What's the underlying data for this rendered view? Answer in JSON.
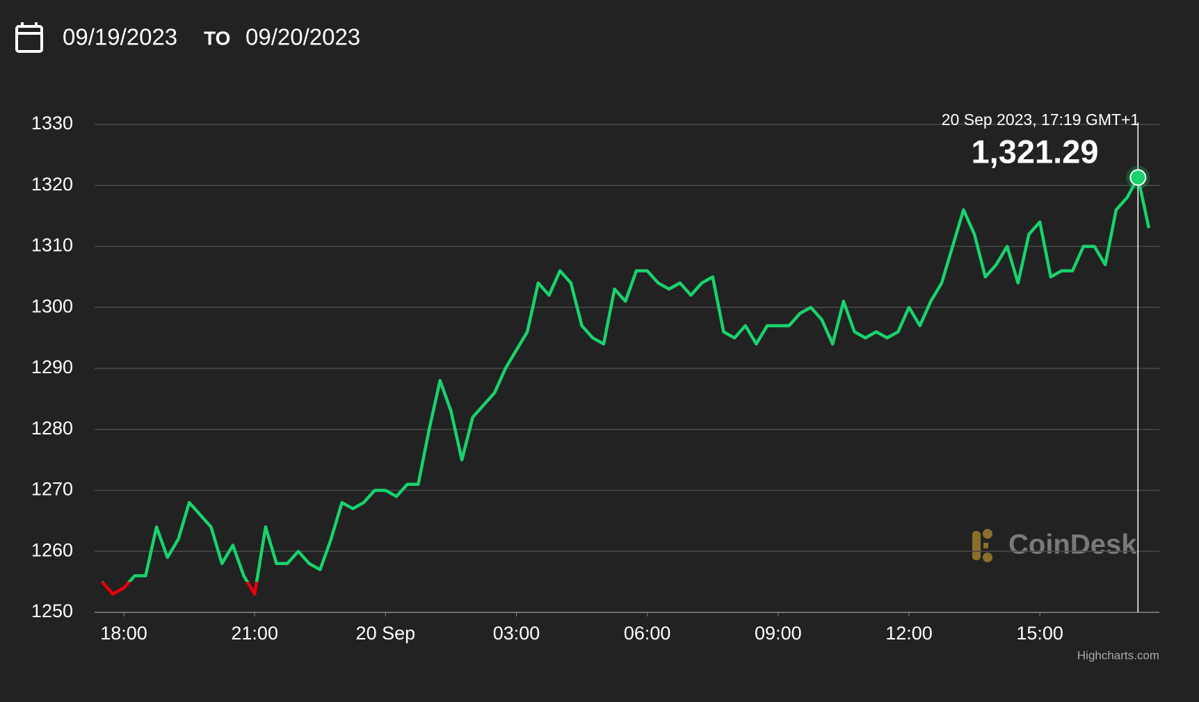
{
  "header": {
    "from": "09/19/2023",
    "to_label": "TO",
    "to": "09/20/2023"
  },
  "chart_data": {
    "type": "line",
    "x": [
      17.5,
      17.75,
      18,
      18.25,
      18.5,
      18.75,
      19,
      19.25,
      19.5,
      19.75,
      20,
      20.25,
      20.5,
      20.75,
      21,
      21.25,
      21.5,
      21.75,
      22,
      22.25,
      22.5,
      22.75,
      23,
      23.25,
      23.5,
      23.75,
      24,
      24.25,
      24.5,
      24.75,
      25,
      25.25,
      25.5,
      25.75,
      26,
      26.25,
      26.5,
      26.75,
      27,
      27.25,
      27.5,
      27.75,
      28,
      28.25,
      28.5,
      28.75,
      29,
      29.25,
      29.5,
      29.75,
      30,
      30.25,
      30.5,
      30.75,
      31,
      31.25,
      31.5,
      31.75,
      32,
      32.25,
      32.5,
      32.75,
      33,
      33.25,
      33.5,
      33.75,
      34,
      34.25,
      34.5,
      34.75,
      35,
      35.25,
      35.5,
      35.75,
      36,
      36.25,
      36.5,
      36.75,
      37,
      37.25,
      37.5,
      37.75,
      38,
      38.25,
      38.5,
      38.75,
      39,
      39.25,
      39.5,
      39.75,
      40,
      40.25,
      40.5,
      40.75,
      41,
      41.25,
      41.5
    ],
    "series": [
      {
        "color": "#18d26e",
        "negative_color": "#e8000b",
        "threshold": 1255,
        "values": [
          1255,
          1253,
          1254,
          1256,
          1256,
          1264,
          1259,
          1262,
          1268,
          1266,
          1264,
          1258,
          1261,
          1256,
          1253,
          1264,
          1258,
          1258,
          1260,
          1258,
          1257,
          1262,
          1268,
          1267,
          1268,
          1270,
          1270,
          1269,
          1271,
          1271,
          1280,
          1288,
          1283,
          1275,
          1282,
          1284,
          1286,
          1290,
          1293,
          1296,
          1304,
          1302,
          1306,
          1304,
          1297,
          1295,
          1294,
          1303,
          1301,
          1306,
          1306,
          1304,
          1303,
          1304,
          1302,
          1304,
          1305,
          1296,
          1295,
          1297,
          1294,
          1297,
          1297,
          1297,
          1299,
          1300,
          1298,
          1294,
          1301,
          1296,
          1295,
          1296,
          1295,
          1296,
          1300,
          1297,
          1301,
          1304,
          1310,
          1316,
          1312,
          1305,
          1307,
          1310,
          1304,
          1312,
          1314,
          1305,
          1306,
          1306,
          1310,
          1310,
          1307,
          1316,
          1318,
          1321.29,
          1313
        ]
      }
    ],
    "xlim": [
      17.33,
      41.74
    ],
    "xticks": [
      {
        "value": 18,
        "label": "18:00"
      },
      {
        "value": 21,
        "label": "21:00"
      },
      {
        "value": 24,
        "label": "20 Sep"
      },
      {
        "value": 27,
        "label": "03:00"
      },
      {
        "value": 30,
        "label": "06:00"
      },
      {
        "value": 33,
        "label": "09:00"
      },
      {
        "value": 36,
        "label": "12:00"
      },
      {
        "value": 39,
        "label": "15:00"
      }
    ],
    "ylim": [
      1250,
      1330
    ],
    "yticks": [
      1250,
      1260,
      1270,
      1280,
      1290,
      1300,
      1310,
      1320,
      1330
    ],
    "grid": true,
    "tooltip": {
      "label": "20 Sep 2023, 17:19 GMT+1",
      "x": 41.25,
      "value": 1321.29,
      "value_label": "1,321.29"
    },
    "watermark": "CoinDesk",
    "credits": "Highcharts.com"
  }
}
